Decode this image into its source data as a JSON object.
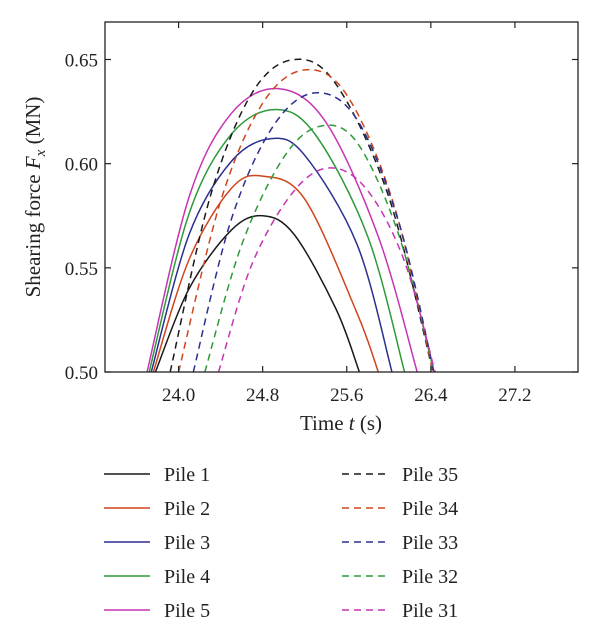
{
  "chart_data": {
    "type": "line",
    "title": "",
    "xlabel": {
      "prefix": "Time ",
      "symbol": "t",
      "suffix": " (s)"
    },
    "ylabel": {
      "prefix": "Shearing force ",
      "symbol": "F",
      "subscript": "x",
      "suffix": " (MN)"
    },
    "xlim": [
      23.3,
      27.8
    ],
    "ylim": [
      0.5,
      0.668
    ],
    "xticks": [
      "24.0",
      "24.8",
      "25.6",
      "26.4",
      "27.2"
    ],
    "yticks": [
      "0.50",
      "0.55",
      "0.60",
      "0.65"
    ],
    "grid": false,
    "legend_position": "bottom",
    "series": [
      {
        "name": "Pile 1",
        "color": "#1a1a1a",
        "dash": "solid",
        "x": [
          23.78,
          24.1,
          24.5,
          24.8,
          25.1,
          25.5,
          25.72
        ],
        "y": [
          0.5,
          0.54,
          0.568,
          0.575,
          0.566,
          0.53,
          0.5
        ]
      },
      {
        "name": "Pile 2",
        "color": "#d0451b",
        "dash": "solid",
        "x": [
          23.76,
          24.1,
          24.5,
          24.8,
          25.2,
          25.7,
          25.9
        ],
        "y": [
          0.5,
          0.554,
          0.588,
          0.594,
          0.583,
          0.528,
          0.5
        ]
      },
      {
        "name": "Pile 3",
        "color": "#2b2f8f",
        "dash": "solid",
        "x": [
          23.74,
          24.1,
          24.5,
          24.88,
          25.2,
          25.7,
          26.03
        ],
        "y": [
          0.5,
          0.566,
          0.601,
          0.612,
          0.604,
          0.561,
          0.5
        ]
      },
      {
        "name": "Pile 4",
        "color": "#2e9a3a",
        "dash": "solid",
        "x": [
          23.72,
          24.1,
          24.5,
          24.92,
          25.3,
          25.8,
          26.15
        ],
        "y": [
          0.5,
          0.576,
          0.614,
          0.626,
          0.614,
          0.565,
          0.5
        ]
      },
      {
        "name": "Pile 5",
        "color": "#c634b4",
        "dash": "solid",
        "x": [
          23.7,
          24.1,
          24.5,
          24.95,
          25.4,
          25.9,
          26.27
        ],
        "y": [
          0.5,
          0.584,
          0.624,
          0.636,
          0.62,
          0.565,
          0.5
        ]
      },
      {
        "name": "Pile 35",
        "color": "#1a1a1a",
        "dash": "dashed",
        "x": [
          23.92,
          24.3,
          24.7,
          25.1,
          25.5,
          26.0,
          26.42
        ],
        "y": [
          0.5,
          0.584,
          0.634,
          0.65,
          0.638,
          0.584,
          0.5
        ]
      },
      {
        "name": "Pile 34",
        "color": "#d0451b",
        "dash": "dashed",
        "x": [
          24.0,
          24.4,
          24.8,
          25.2,
          25.6,
          26.05,
          26.42
        ],
        "y": [
          0.5,
          0.582,
          0.629,
          0.645,
          0.633,
          0.58,
          0.5
        ]
      },
      {
        "name": "Pile 33",
        "color": "#2b2f8f",
        "dash": "dashed",
        "x": [
          24.14,
          24.5,
          24.9,
          25.3,
          25.7,
          26.1,
          26.43
        ],
        "y": [
          0.5,
          0.573,
          0.618,
          0.634,
          0.621,
          0.571,
          0.5
        ]
      },
      {
        "name": "Pile 32",
        "color": "#2e9a3a",
        "dash": "dashed",
        "x": [
          24.25,
          24.6,
          25.0,
          25.35,
          25.7,
          26.1,
          26.43
        ],
        "y": [
          0.5,
          0.561,
          0.603,
          0.618,
          0.61,
          0.565,
          0.5
        ]
      },
      {
        "name": "Pile 31",
        "color": "#c634b4",
        "dash": "dashed",
        "x": [
          24.38,
          24.7,
          25.1,
          25.45,
          25.8,
          26.15,
          26.44
        ],
        "y": [
          0.5,
          0.552,
          0.587,
          0.598,
          0.587,
          0.553,
          0.5
        ]
      }
    ]
  }
}
